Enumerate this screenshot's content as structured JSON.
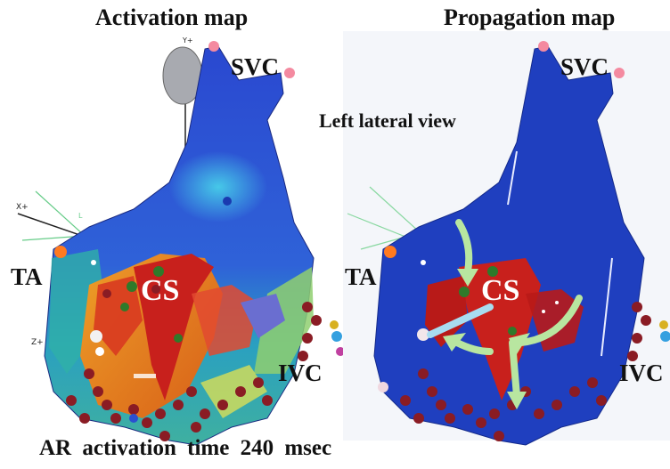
{
  "titles": {
    "left": "Activation map",
    "right": "Propagation map"
  },
  "view_label": "Left lateral view",
  "left_labels": {
    "svc": "SVC",
    "ta": "TA",
    "cs": "CS",
    "ivc": "IVC"
  },
  "right_labels": {
    "svc": "SVC",
    "ta": "TA",
    "cs": "CS",
    "ivc": "IVC"
  },
  "axis_labels": {
    "y": "Y+",
    "x": "X+",
    "z": "Z+",
    "l": "L"
  },
  "caption": "AR activation time 240 msec",
  "colors": {
    "chamber_blue": "#1f3fbf",
    "activation_red": "#c8201c",
    "activation_orange": "#f08020",
    "arrow": "#b8e6a0",
    "lesion": "#8a1c24"
  }
}
